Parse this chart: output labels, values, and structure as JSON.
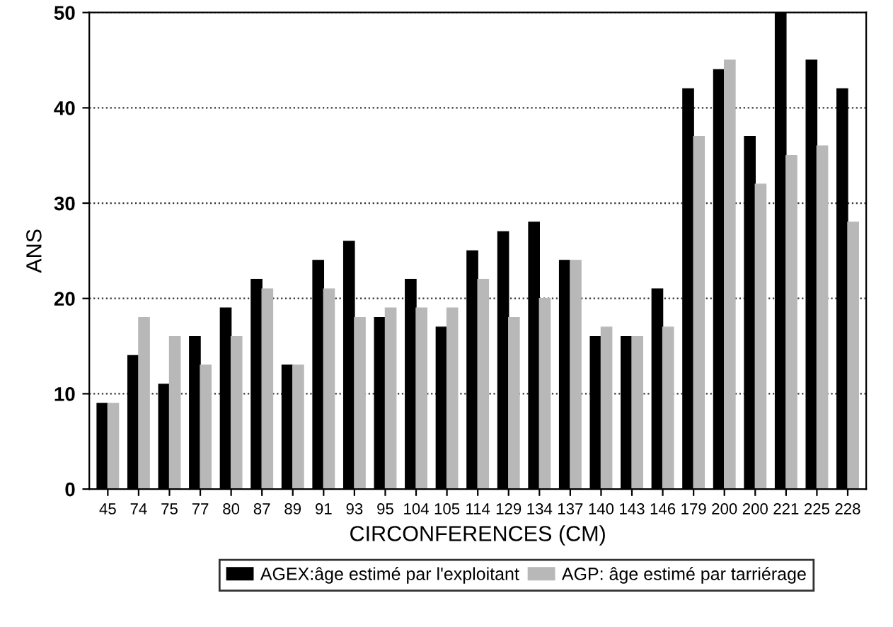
{
  "chart_data": {
    "type": "bar",
    "xlabel": "CIRCONFERENCES (CM)",
    "ylabel": "ANS",
    "categories": [
      "45",
      "74",
      "75",
      "77",
      "80",
      "87",
      "89",
      "91",
      "93",
      "95",
      "104",
      "105",
      "114",
      "129",
      "134",
      "137",
      "140",
      "143",
      "146",
      "179",
      "200",
      "200",
      "221",
      "225",
      "228"
    ],
    "series": [
      {
        "name": "AGEX:âge estimé par l'exploitant",
        "color": "#000000",
        "values": [
          9,
          14,
          11,
          16,
          19,
          22,
          13,
          24,
          26,
          18,
          22,
          17,
          25,
          27,
          28,
          24,
          16,
          16,
          21,
          42,
          44,
          37,
          50,
          45,
          42
        ]
      },
      {
        "name": "AGP: âge estimé par tarriérage",
        "color": "#b8b8b8",
        "values": [
          9,
          18,
          16,
          13,
          16,
          21,
          13,
          21,
          18,
          19,
          19,
          19,
          22,
          18,
          20,
          24,
          17,
          16,
          17,
          37,
          45,
          32,
          35,
          36,
          28
        ]
      }
    ],
    "ylim": [
      0,
      50
    ],
    "yticks": [
      0,
      10,
      20,
      30,
      40,
      50
    ],
    "grid": "y",
    "legend": "bottom"
  }
}
